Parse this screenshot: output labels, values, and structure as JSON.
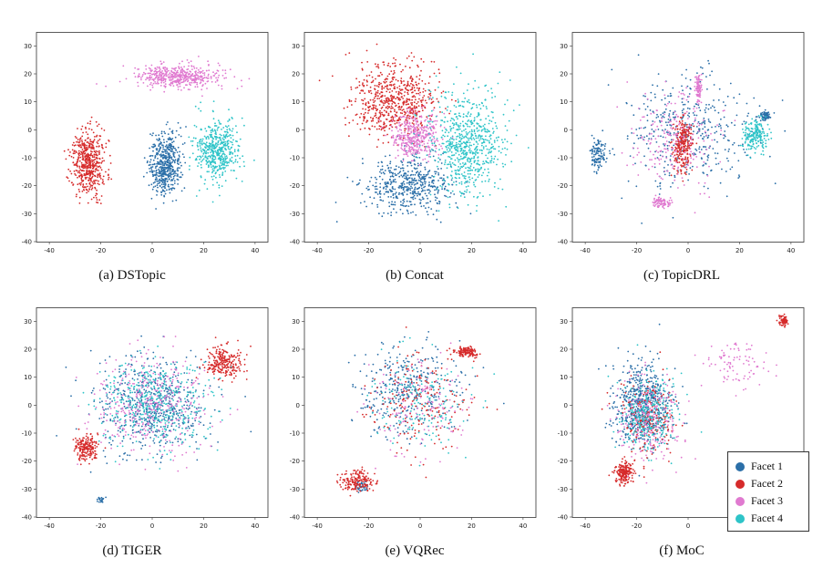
{
  "colors": {
    "Facet 1": "#2b6fa8",
    "Facet 2": "#d62b2b",
    "Facet 3": "#e07ad0",
    "Facet 4": "#2ec4c8"
  },
  "legend": {
    "placement": "inside-bottom-right of panel (f)",
    "entries": [
      "Facet 1",
      "Facet 2",
      "Facet 3",
      "Facet 4"
    ]
  },
  "chart_data": [
    {
      "type": "scatter",
      "caption": "(a) DSTopic",
      "xlim": [
        -45,
        45
      ],
      "ylim": [
        -40,
        35
      ],
      "xticks": [
        -40,
        -20,
        0,
        20,
        40
      ],
      "yticks": [
        -40,
        -30,
        -20,
        -10,
        0,
        10,
        20,
        30
      ],
      "grid": false,
      "series": [
        {
          "name": "Facet 1",
          "clusters": [
            {
              "cx": 5,
              "cy": -12,
              "sx": 5,
              "sy": 9,
              "n": 520
            }
          ]
        },
        {
          "name": "Facet 2",
          "clusters": [
            {
              "cx": -25,
              "cy": -12,
              "sx": 5.5,
              "sy": 10,
              "n": 520
            }
          ]
        },
        {
          "name": "Facet 3",
          "clusters": [
            {
              "cx": 10,
              "cy": 19,
              "sx": 14,
              "sy": 3.5,
              "n": 480
            }
          ]
        },
        {
          "name": "Facet 4",
          "clusters": [
            {
              "cx": 25,
              "cy": -8,
              "sx": 7,
              "sy": 9,
              "n": 500
            }
          ]
        }
      ]
    },
    {
      "type": "scatter",
      "caption": "(b) Concat",
      "xlim": [
        -45,
        45
      ],
      "ylim": [
        -40,
        35
      ],
      "xticks": [
        -40,
        -20,
        0,
        20,
        40
      ],
      "yticks": [
        -40,
        -30,
        -20,
        -10,
        0,
        10,
        20,
        30
      ],
      "grid": false,
      "series": [
        {
          "name": "Facet 1",
          "clusters": [
            {
              "cx": -5,
              "cy": -20,
              "sx": 14,
              "sy": 8,
              "n": 500
            }
          ]
        },
        {
          "name": "Facet 2",
          "clusters": [
            {
              "cx": -10,
              "cy": 10,
              "sx": 14,
              "sy": 11,
              "n": 650
            }
          ]
        },
        {
          "name": "Facet 3",
          "clusters": [
            {
              "cx": -2,
              "cy": -2,
              "sx": 8,
              "sy": 7,
              "n": 400
            }
          ]
        },
        {
          "name": "Facet 4",
          "clusters": [
            {
              "cx": 18,
              "cy": -5,
              "sx": 12,
              "sy": 16,
              "n": 700
            }
          ]
        }
      ]
    },
    {
      "type": "scatter",
      "caption": "(c) TopicDRL",
      "xlim": [
        -45,
        45
      ],
      "ylim": [
        -40,
        35
      ],
      "xticks": [
        -40,
        -20,
        0,
        20,
        40
      ],
      "yticks": [
        -40,
        -30,
        -20,
        -10,
        0,
        10,
        20,
        30
      ],
      "grid": false,
      "series": [
        {
          "name": "Facet 1",
          "clusters": [
            {
              "cx": 0,
              "cy": 0,
              "sx": 20,
              "sy": 16,
              "n": 420
            },
            {
              "cx": -35,
              "cy": -9,
              "sx": 2.5,
              "sy": 5,
              "n": 120
            },
            {
              "cx": 30,
              "cy": 5,
              "sx": 2,
              "sy": 1.5,
              "n": 80
            }
          ]
        },
        {
          "name": "Facet 2",
          "clusters": [
            {
              "cx": -2,
              "cy": -5,
              "sx": 3,
              "sy": 8,
              "n": 280
            }
          ]
        },
        {
          "name": "Facet 3",
          "clusters": [
            {
              "cx": -5,
              "cy": -5,
              "sx": 14,
              "sy": 14,
              "n": 220
            },
            {
              "cx": 4,
              "cy": 15,
              "sx": 1,
              "sy": 4,
              "n": 100
            },
            {
              "cx": -10,
              "cy": -26,
              "sx": 3,
              "sy": 1.5,
              "n": 80
            }
          ]
        },
        {
          "name": "Facet 4",
          "clusters": [
            {
              "cx": 26,
              "cy": -2,
              "sx": 4,
              "sy": 5,
              "n": 200
            }
          ]
        }
      ]
    },
    {
      "type": "scatter",
      "caption": "(d) TIGER",
      "xlim": [
        -45,
        45
      ],
      "ylim": [
        -40,
        35
      ],
      "xticks": [
        -40,
        -20,
        0,
        20,
        40
      ],
      "yticks": [
        -40,
        -30,
        -20,
        -10,
        0,
        10,
        20,
        30
      ],
      "grid": false,
      "series": [
        {
          "name": "Facet 1",
          "clusters": [
            {
              "cx": 0,
              "cy": 0,
              "sx": 18,
              "sy": 14,
              "n": 600
            },
            {
              "cx": -20,
              "cy": -34,
              "sx": 1.5,
              "sy": 1,
              "n": 20
            }
          ]
        },
        {
          "name": "Facet 2",
          "clusters": [
            {
              "cx": -26,
              "cy": -15,
              "sx": 4,
              "sy": 4,
              "n": 200
            },
            {
              "cx": 28,
              "cy": 15,
              "sx": 6,
              "sy": 5,
              "n": 250
            }
          ]
        },
        {
          "name": "Facet 3",
          "clusters": [
            {
              "cx": 0,
              "cy": 0,
              "sx": 18,
              "sy": 14,
              "n": 400
            }
          ]
        },
        {
          "name": "Facet 4",
          "clusters": [
            {
              "cx": 0,
              "cy": 0,
              "sx": 18,
              "sy": 14,
              "n": 400
            }
          ]
        }
      ]
    },
    {
      "type": "scatter",
      "caption": "(e) VQRec",
      "xlim": [
        -45,
        45
      ],
      "ylim": [
        -40,
        35
      ],
      "xticks": [
        -40,
        -20,
        0,
        20,
        40
      ],
      "yticks": [
        -40,
        -30,
        -20,
        -10,
        0,
        10,
        20,
        30
      ],
      "grid": false,
      "series": [
        {
          "name": "Facet 1",
          "clusters": [
            {
              "cx": -5,
              "cy": 5,
              "sx": 16,
              "sy": 14,
              "n": 350
            },
            {
              "cx": -23,
              "cy": -29,
              "sx": 2,
              "sy": 1.5,
              "n": 40
            }
          ]
        },
        {
          "name": "Facet 2",
          "clusters": [
            {
              "cx": -25,
              "cy": -27,
              "sx": 5,
              "sy": 3,
              "n": 180
            },
            {
              "cx": 18,
              "cy": 19,
              "sx": 4,
              "sy": 1.5,
              "n": 120
            },
            {
              "cx": 0,
              "cy": 0,
              "sx": 16,
              "sy": 15,
              "n": 200
            }
          ]
        },
        {
          "name": "Facet 3",
          "clusters": [
            {
              "cx": 0,
              "cy": 0,
              "sx": 16,
              "sy": 15,
              "n": 150
            }
          ]
        },
        {
          "name": "Facet 4",
          "clusters": [
            {
              "cx": 0,
              "cy": 0,
              "sx": 16,
              "sy": 15,
              "n": 150
            }
          ]
        }
      ]
    },
    {
      "type": "scatter",
      "caption": "(f) MoC",
      "xlim": [
        -45,
        45
      ],
      "ylim": [
        -40,
        35
      ],
      "xticks": [
        -40,
        -20,
        0,
        20,
        40
      ],
      "yticks": [
        -40,
        -30,
        -20,
        -10,
        0,
        10,
        20,
        30
      ],
      "grid": false,
      "series": [
        {
          "name": "Facet 1",
          "clusters": [
            {
              "cx": -18,
              "cy": 0,
              "sx": 9,
              "sy": 12,
              "n": 650
            }
          ]
        },
        {
          "name": "Facet 2",
          "clusters": [
            {
              "cx": -25,
              "cy": -24,
              "sx": 3,
              "sy": 3,
              "n": 200
            },
            {
              "cx": 37,
              "cy": 30,
              "sx": 1.5,
              "sy": 1.5,
              "n": 80
            },
            {
              "cx": -15,
              "cy": -5,
              "sx": 10,
              "sy": 12,
              "n": 200
            }
          ]
        },
        {
          "name": "Facet 3",
          "clusters": [
            {
              "cx": -15,
              "cy": -5,
              "sx": 10,
              "sy": 12,
              "n": 250
            },
            {
              "cx": 18,
              "cy": 15,
              "sx": 10,
              "sy": 7,
              "n": 90
            }
          ]
        },
        {
          "name": "Facet 4",
          "clusters": [
            {
              "cx": -15,
              "cy": -3,
              "sx": 10,
              "sy": 12,
              "n": 250
            }
          ]
        }
      ]
    }
  ]
}
